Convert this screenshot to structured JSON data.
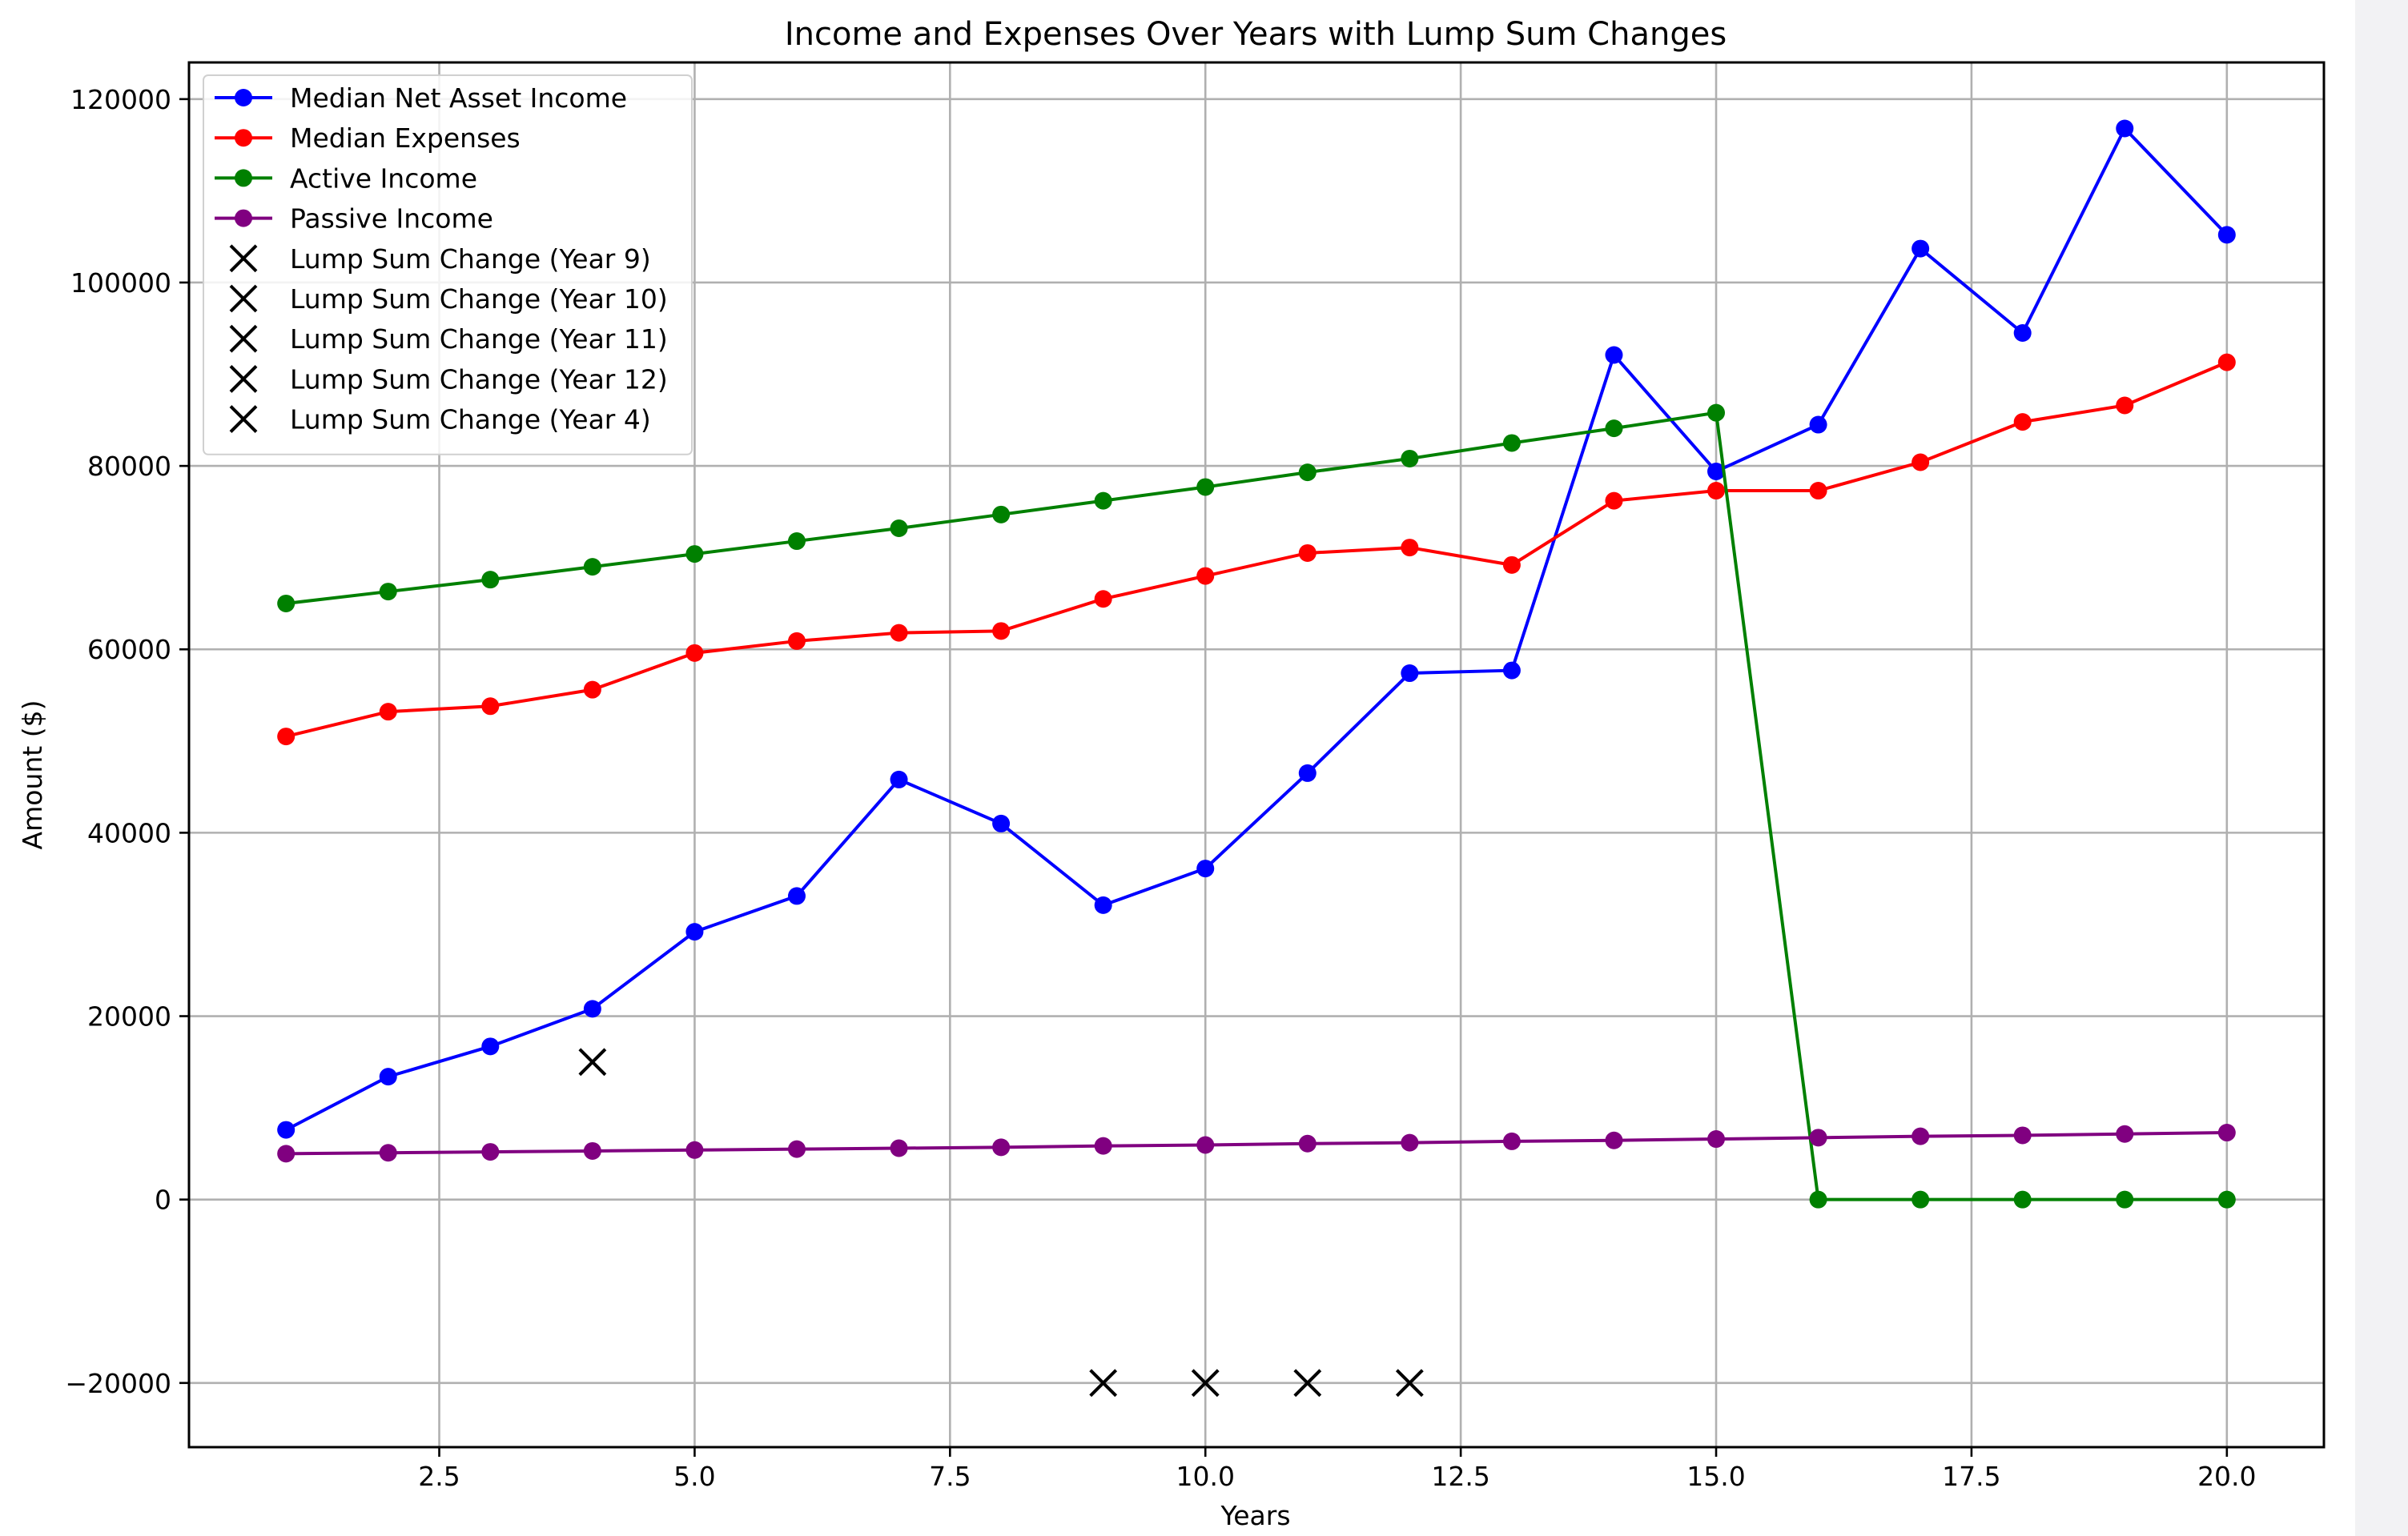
{
  "chart_data": {
    "type": "line",
    "title": "Income and Expenses Over Years with Lump Sum Changes",
    "xlabel": "Years",
    "ylabel": "Amount ($)",
    "xlim": [
      0.05,
      20.95
    ],
    "ylim": [
      -27000,
      124000
    ],
    "xticks": [
      2.5,
      5.0,
      7.5,
      10.0,
      12.5,
      15.0,
      17.5,
      20.0
    ],
    "xtick_labels": [
      "2.5",
      "5.0",
      "7.5",
      "10.0",
      "12.5",
      "15.0",
      "17.5",
      "20.0"
    ],
    "yticks": [
      -20000,
      0,
      20000,
      40000,
      60000,
      80000,
      100000,
      120000
    ],
    "ytick_labels": [
      "−20000",
      "0",
      "20000",
      "40000",
      "60000",
      "80000",
      "100000",
      "120000"
    ],
    "grid": true,
    "legend_position": "upper-left",
    "x": [
      1,
      2,
      3,
      4,
      5,
      6,
      7,
      8,
      9,
      10,
      11,
      12,
      13,
      14,
      15,
      16,
      17,
      18,
      19,
      20
    ],
    "series": [
      {
        "name": "Median Net Asset Income",
        "color": "#0000ff",
        "marker": "circle",
        "values": [
          7600,
          13400,
          16700,
          20800,
          29200,
          33100,
          45800,
          41000,
          32100,
          36100,
          46500,
          57400,
          57700,
          92100,
          79400,
          84500,
          103700,
          94500,
          116800,
          105200
        ]
      },
      {
        "name": "Median Expenses",
        "color": "#ff0000",
        "marker": "circle",
        "values": [
          50500,
          53200,
          53800,
          55600,
          59600,
          60900,
          61800,
          62000,
          65500,
          68000,
          70500,
          71100,
          69200,
          76200,
          77300,
          77300,
          80400,
          84800,
          86600,
          91300
        ]
      },
      {
        "name": "Active Income",
        "color": "#008000",
        "marker": "circle",
        "values": [
          65000,
          66300,
          67600,
          69000,
          70400,
          71800,
          73200,
          74700,
          76200,
          77700,
          79300,
          80800,
          82500,
          84100,
          85800,
          0,
          0,
          0,
          0,
          0
        ]
      },
      {
        "name": "Passive Income",
        "color": "#800080",
        "marker": "circle",
        "values": [
          5000,
          5100,
          5200,
          5300,
          5400,
          5500,
          5600,
          5700,
          5850,
          5950,
          6100,
          6200,
          6350,
          6450,
          6600,
          6750,
          6900,
          7000,
          7150,
          7300
        ]
      }
    ],
    "lump_sums": [
      {
        "name": "Lump Sum Change (Year 9)",
        "x": 9,
        "y": -20000,
        "color": "#000000"
      },
      {
        "name": "Lump Sum Change (Year 10)",
        "x": 10,
        "y": -20000,
        "color": "#000000"
      },
      {
        "name": "Lump Sum Change (Year 11)",
        "x": 11,
        "y": -20000,
        "color": "#000000"
      },
      {
        "name": "Lump Sum Change (Year 12)",
        "x": 12,
        "y": -20000,
        "color": "#000000"
      },
      {
        "name": "Lump Sum Change (Year 4)",
        "x": 4,
        "y": 15000,
        "color": "#000000"
      }
    ]
  }
}
